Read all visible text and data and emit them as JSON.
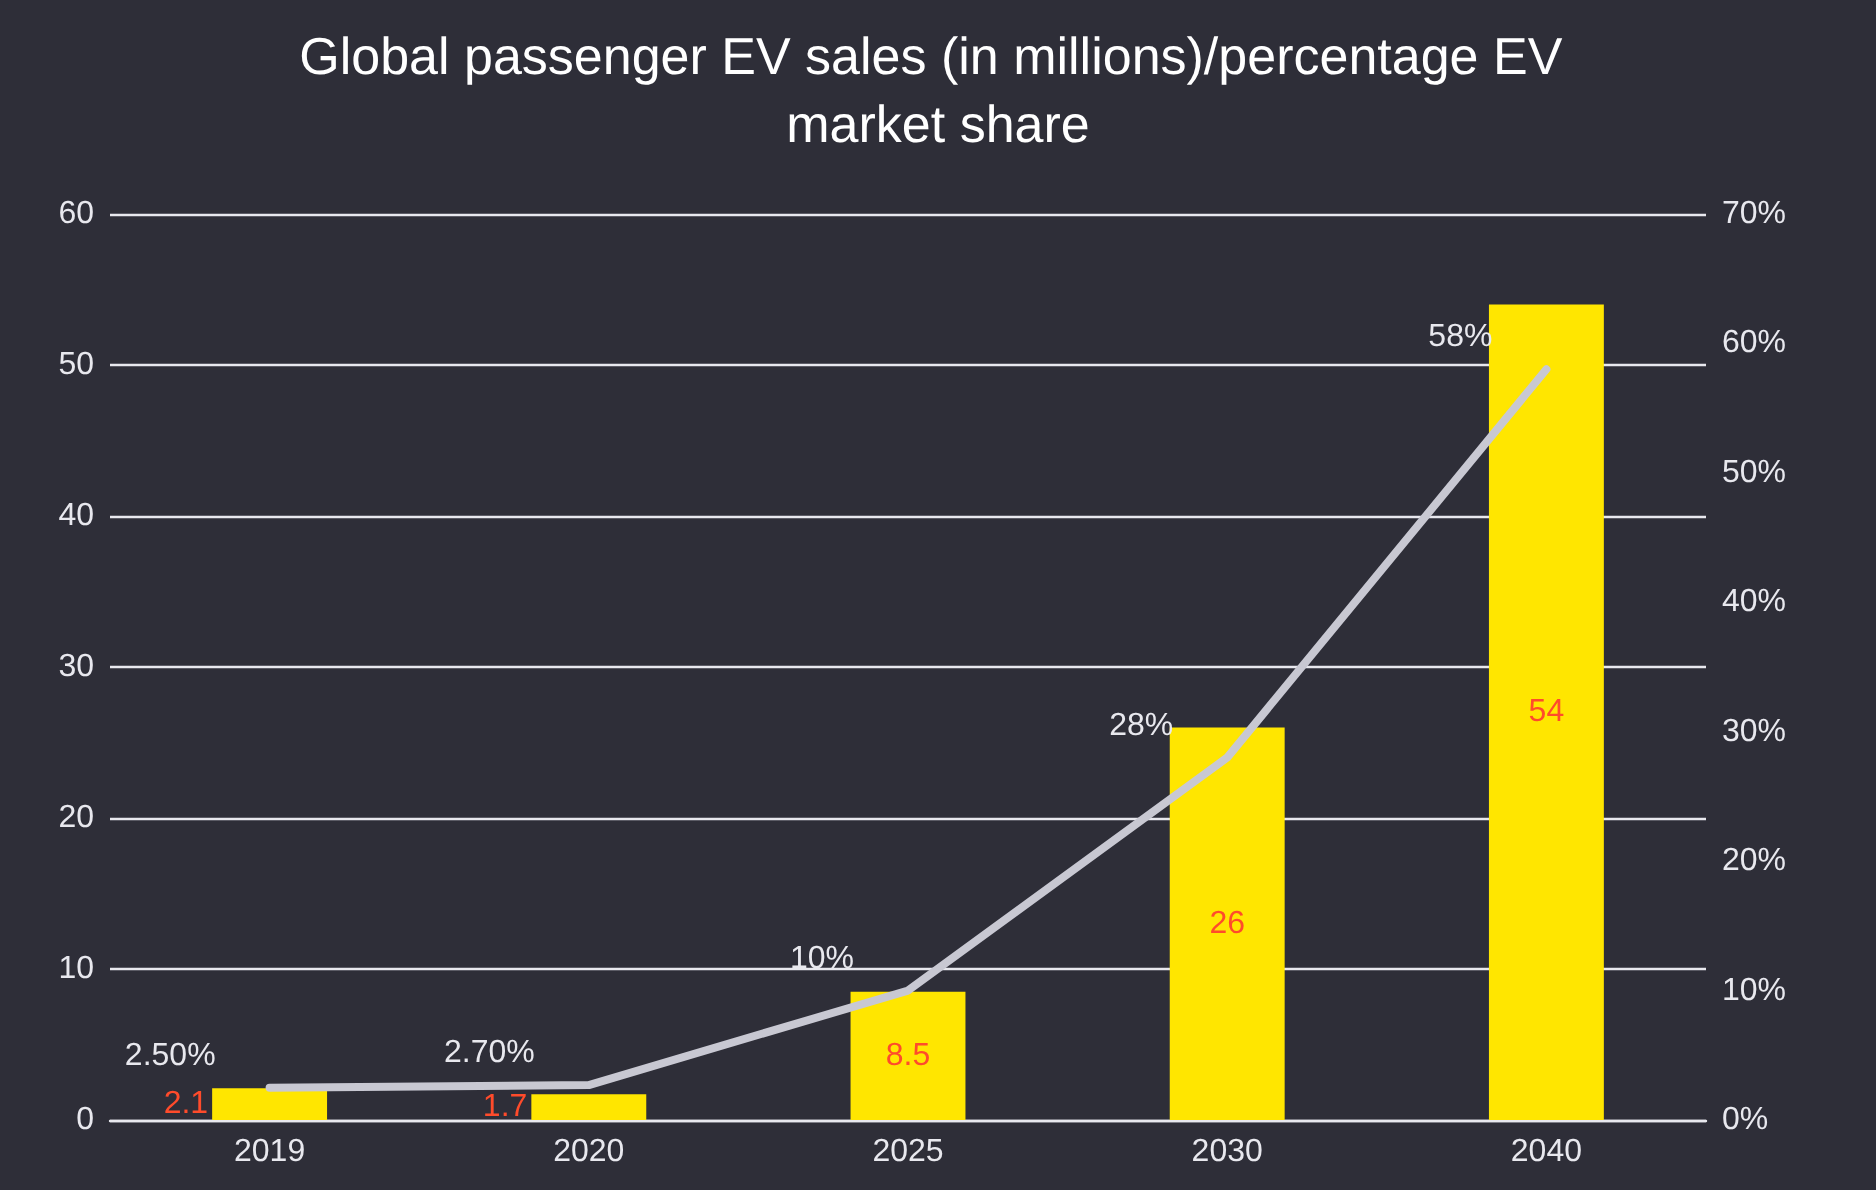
{
  "chart_data": {
    "type": "bar",
    "title": "Global passenger EV sales (in millions)/percentage EV market share",
    "categories": [
      "2019",
      "2020",
      "2025",
      "2030",
      "2040"
    ],
    "series": [
      {
        "color": "#ffe600",
        "values": [
          2.1,
          1.7,
          8.5,
          26,
          54
        ],
        "value_labels": [
          "2.1",
          "1.7",
          "8.5",
          "26",
          "54"
        ]
      },
      {
        "type": "line",
        "axis": "y2",
        "color": "#c8c8d2",
        "values": [
          2.5,
          2.7,
          10,
          28,
          58
        ],
        "value_labels": [
          "2.50%",
          "2.70%",
          "10%",
          "28%",
          "58%"
        ]
      }
    ],
    "ylim": [
      0,
      60
    ],
    "yticks": [
      0,
      10,
      20,
      30,
      40,
      50,
      60
    ],
    "y2lim": [
      0,
      70
    ],
    "y2ticks": [
      {
        "value": 0,
        "label": "0%"
      },
      {
        "value": 10,
        "label": "10%"
      },
      {
        "value": 20,
        "label": "20%"
      },
      {
        "value": 30,
        "label": "30%"
      },
      {
        "value": 40,
        "label": "40%"
      },
      {
        "value": 50,
        "label": "50%"
      },
      {
        "value": 60,
        "label": "60%"
      },
      {
        "value": 70,
        "label": "70%"
      }
    ],
    "grid": "y",
    "marker": "none",
    "line_style": "solid"
  }
}
